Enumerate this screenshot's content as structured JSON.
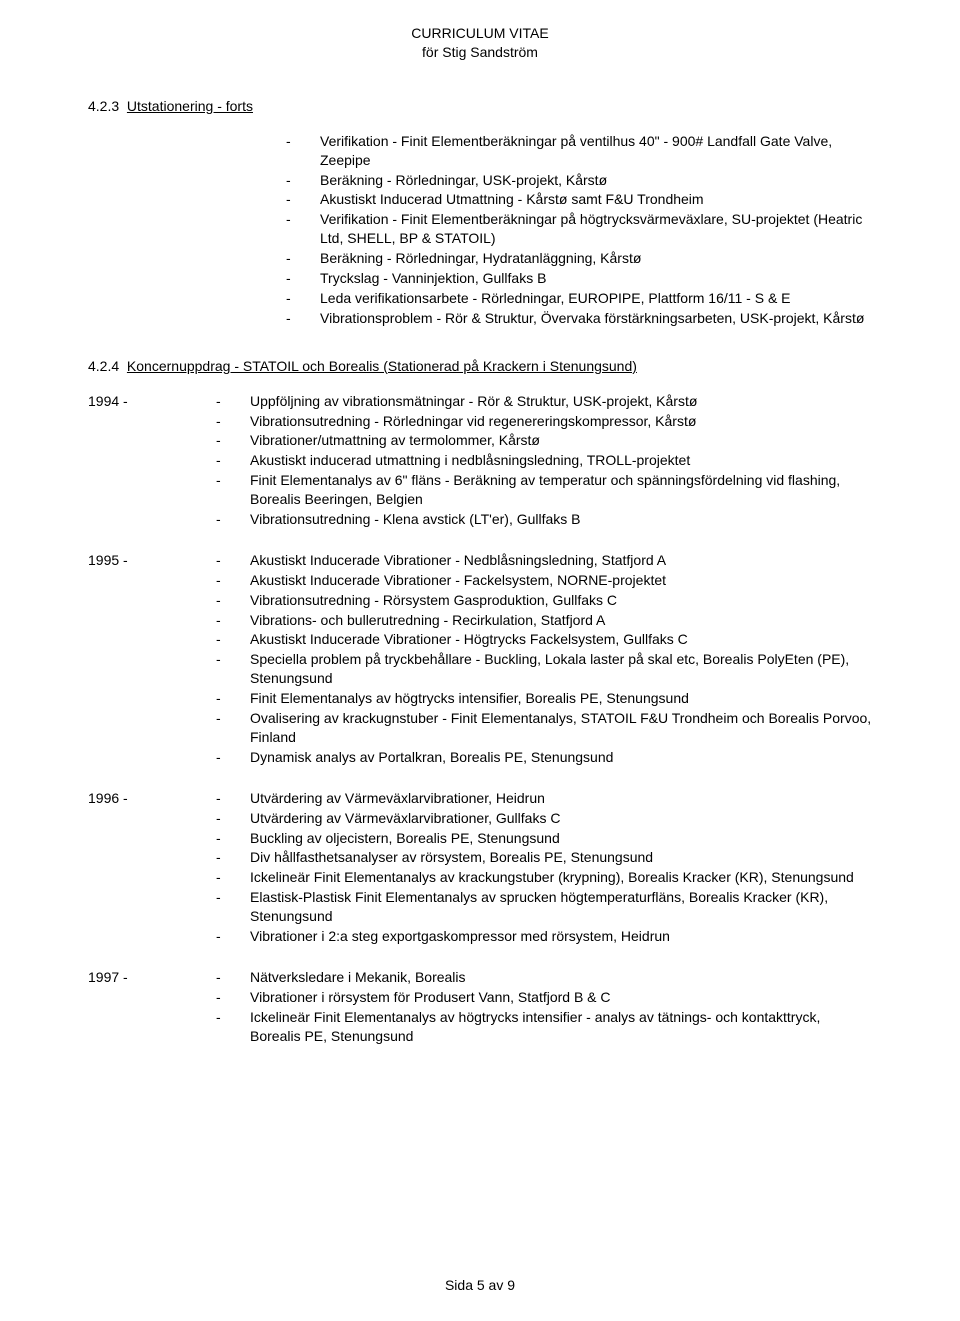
{
  "header": {
    "line1": "CURRICULUM VITAE",
    "line2": "för Stig Sandström"
  },
  "section423": {
    "number": "4.2.3",
    "title": "Utstationering - forts",
    "items": [
      "Verifikation - Finit Elementberäkningar på ventilhus 40\" - 900# Landfall Gate Valve, Zeepipe",
      "Beräkning - Rörledningar, USK-projekt, Kårstø",
      "Akustiskt Inducerad Utmattning - Kårstø samt F&U Trondheim",
      "Verifikation - Finit Elementberäkningar på högtrycksvärmeväxlare, SU-projektet (Heatric Ltd, SHELL, BP & STATOIL)",
      "Beräkning - Rörledningar, Hydratanläggning, Kårstø",
      "Tryckslag - Vanninjektion, Gullfaks B",
      "Leda verifikationsarbete - Rörledningar, EUROPIPE, Plattform 16/11 - S & E",
      "Vibrationsproblem - Rör & Struktur, Övervaka förstärkningsarbeten, USK-projekt, Kårstø"
    ]
  },
  "section424": {
    "number": "4.2.4",
    "title": "Koncernuppdrag - STATOIL och Borealis (Stationerad på Krackern i Stenungsund)",
    "years": [
      {
        "year": "1994 -",
        "items": [
          "Uppföljning av vibrationsmätningar - Rör & Struktur, USK-projekt, Kårstø",
          "Vibrationsutredning - Rörledningar vid regenereringskompressor, Kårstø",
          "Vibrationer/utmattning av termolommer, Kårstø",
          "Akustiskt inducerad utmattning i nedblåsningsledning, TROLL-projektet",
          "Finit Elementanalys av 6\" fläns - Beräkning av temperatur och spänningsfördelning vid flashing, Borealis Beeringen, Belgien",
          "Vibrationsutredning - Klena avstick (LT'er), Gullfaks B"
        ]
      },
      {
        "year": "1995 -",
        "items": [
          "Akustiskt Inducerade Vibrationer - Nedblåsningsledning, Statfjord A",
          "Akustiskt Inducerade Vibrationer - Fackelsystem, NORNE-projektet",
          "Vibrationsutredning - Rörsystem Gasproduktion, Gullfaks C",
          "Vibrations- och bullerutredning - Recirkulation, Statfjord A",
          "Akustiskt Inducerade Vibrationer - Högtrycks Fackelsystem, Gullfaks C",
          "Speciella problem på tryckbehållare - Buckling, Lokala laster på skal etc, Borealis PolyEten (PE), Stenungsund",
          "Finit Elementanalys av högtrycks intensifier, Borealis PE, Stenungsund",
          "Ovalisering av krackugnstuber - Finit Elementanalys, STATOIL F&U Trondheim och Borealis Porvoo, Finland",
          "Dynamisk analys av Portalkran, Borealis PE, Stenungsund"
        ]
      },
      {
        "year": "1996 -",
        "items": [
          "Utvärdering av Värmeväxlarvibrationer, Heidrun",
          "Utvärdering av Värmeväxlarvibrationer, Gullfaks C",
          "Buckling av oljecistern, Borealis PE, Stenungsund",
          "Div hållfasthetsanalyser av rörsystem, Borealis PE, Stenungsund",
          "Ickelineär Finit Elementanalys av krackungstuber (krypning), Borealis Kracker (KR), Stenungsund",
          "Elastisk-Plastisk Finit Elementanalys av sprucken högtemperaturfläns, Borealis Kracker (KR), Stenungsund",
          "Vibrationer i 2:a steg exportgaskompressor med rörsystem, Heidrun"
        ]
      },
      {
        "year": "1997 -",
        "items": [
          "Nätverksledare i Mekanik, Borealis",
          "Vibrationer i rörsystem för Produsert Vann, Statfjord B & C",
          "Ickelineär Finit Elementanalys av högtrycks intensifier - analys av tätnings- och kontakttryck, Borealis PE, Stenungsund"
        ]
      }
    ]
  },
  "footer": "Sida 5 av 9"
}
